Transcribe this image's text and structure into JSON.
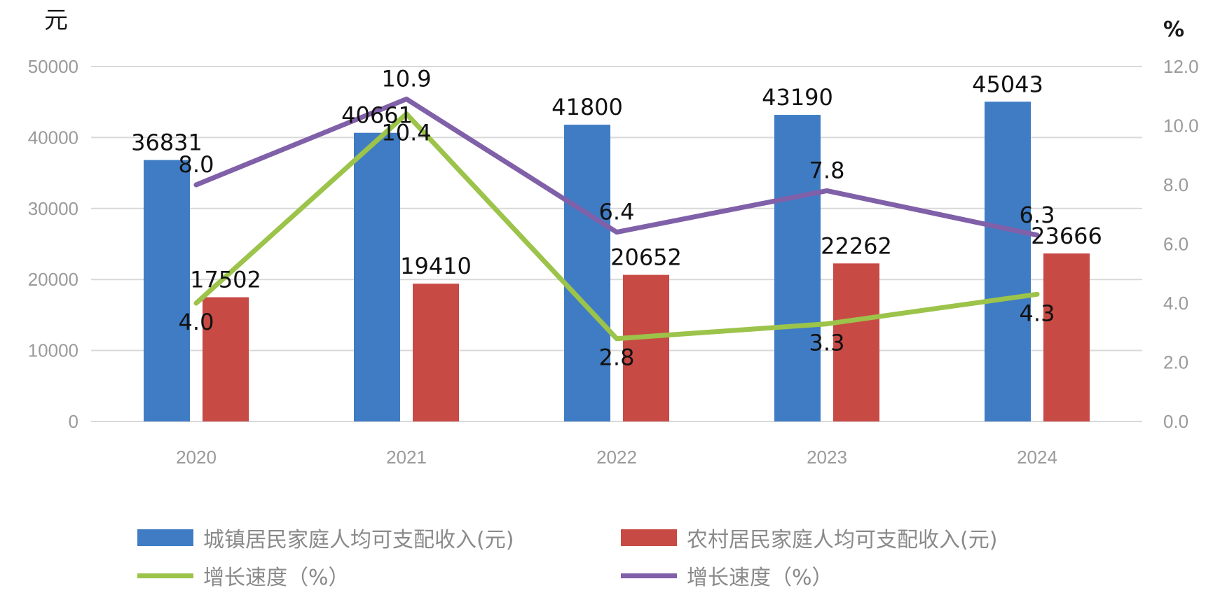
{
  "chart_data": {
    "type": "bar",
    "title": "",
    "left_unit": "元",
    "right_unit": "%",
    "categories": [
      "2020",
      "2021",
      "2022",
      "2023",
      "2024"
    ],
    "ylim_left": [
      0,
      50000
    ],
    "yticks_left": [
      "0",
      "10000",
      "20000",
      "30000",
      "40000",
      "50000"
    ],
    "ylim_right": [
      0,
      12
    ],
    "yticks_right": [
      "0.0",
      "2.0",
      "4.0",
      "6.0",
      "8.0",
      "10.0",
      "12.0"
    ],
    "grid": true,
    "legend_position": "bottom",
    "series": [
      {
        "name": "城镇居民家庭人均可支配收入(元)",
        "type": "bar",
        "axis": "left",
        "color": "#3f7cc4",
        "values": [
          36831,
          40661,
          41800,
          43190,
          45043
        ]
      },
      {
        "name": "农村居民家庭人均可支配收入(元)",
        "type": "bar",
        "axis": "left",
        "color": "#c84a45",
        "values": [
          17502,
          19410,
          20652,
          22262,
          23666
        ]
      },
      {
        "name": "增长速度（%）",
        "type": "line",
        "axis": "right",
        "color": "#9cc34a",
        "values": [
          4.0,
          10.4,
          2.8,
          3.3,
          4.3
        ]
      },
      {
        "name": "增长速度（%）",
        "type": "line",
        "axis": "right",
        "color": "#8060a8",
        "values": [
          8.0,
          10.9,
          6.4,
          7.8,
          6.3
        ]
      }
    ]
  }
}
